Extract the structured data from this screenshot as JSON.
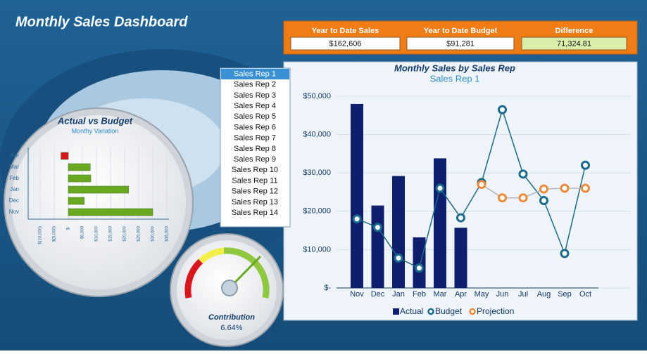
{
  "header": {
    "title": "Monthly Sales Dashboard"
  },
  "kpis": [
    {
      "label": "Year to Date Sales",
      "value": "$162,606"
    },
    {
      "label": "Year to Date Budget",
      "value": "$91,281"
    },
    {
      "label": "Difference",
      "value": "71,324.81"
    }
  ],
  "reps": {
    "items": [
      "Sales Rep 1",
      "Sales Rep 2",
      "Sales Rep 3",
      "Sales Rep 4",
      "Sales Rep 5",
      "Sales Rep 6",
      "Sales Rep 7",
      "Sales Rep 8",
      "Sales Rep 9",
      "Sales Rep 10",
      "Sales Rep 11",
      "Sales Rep 12",
      "Sales Rep 13",
      "Sales Rep 14"
    ],
    "selected": 0
  },
  "gauge": {
    "label": "Contribution",
    "value": "6.64%"
  },
  "chart_data": [
    {
      "type": "combo",
      "title": "Monthly Sales by Sales Rep",
      "subtitle": "Sales Rep 1",
      "categories": [
        "Nov",
        "Dec",
        "Jan",
        "Feb",
        "Mar",
        "Apr",
        "May",
        "Jun",
        "Jul",
        "Aug",
        "Sep",
        "Oct"
      ],
      "series": [
        {
          "name": "Actual",
          "type": "bar",
          "color": "#0f1f6e",
          "values": [
            48000,
            21500,
            29200,
            13200,
            33800,
            15700,
            null,
            null,
            null,
            null,
            null,
            null
          ]
        },
        {
          "name": "Budget",
          "type": "line",
          "color": "#1b6a8c",
          "values": [
            18000,
            15800,
            7800,
            5200,
            26000,
            18300,
            27500,
            46500,
            29700,
            22800,
            9000,
            32000
          ]
        },
        {
          "name": "Projection",
          "type": "line",
          "color": "#ee8a3a",
          "values": [
            null,
            null,
            null,
            null,
            null,
            null,
            27000,
            23500,
            23500,
            25800,
            26000,
            26000
          ]
        }
      ],
      "ylim": [
        0,
        50000
      ],
      "yticks": [
        {
          "value": 0,
          "label": "$-"
        },
        {
          "value": 10000,
          "label": "$10,000"
        },
        {
          "value": 20000,
          "label": "$20,000"
        },
        {
          "value": 30000,
          "label": "$30,000"
        },
        {
          "value": 40000,
          "label": "$40,000"
        },
        {
          "value": 50000,
          "label": "$50,000"
        }
      ],
      "grid": true
    },
    {
      "type": "hbar",
      "title": "Actual vs Budget",
      "subtitle": "Monthy Variation",
      "categories": [
        "Apr",
        "Mar",
        "Feb",
        "Jan",
        "Dec",
        "Nov"
      ],
      "values": [
        -2600,
        7800,
        8000,
        21400,
        5700,
        30000
      ],
      "color": "#6aa821",
      "negative_color": "#d9161c",
      "xlim": [
        -10000,
        35000
      ],
      "xticks": [
        {
          "value": -10000,
          "label": "$(10,000)"
        },
        {
          "value": -5000,
          "label": "$(5,000)"
        },
        {
          "value": 0,
          "label": "$-"
        },
        {
          "value": 5000,
          "label": "$5,000"
        },
        {
          "value": 10000,
          "label": "$10,000"
        },
        {
          "value": 15000,
          "label": "$15,000"
        },
        {
          "value": 20000,
          "label": "$20,000"
        },
        {
          "value": 25000,
          "label": "$25,000"
        },
        {
          "value": 30000,
          "label": "$30,000"
        },
        {
          "value": 35000,
          "label": "$35,000"
        }
      ],
      "grid": true
    }
  ]
}
